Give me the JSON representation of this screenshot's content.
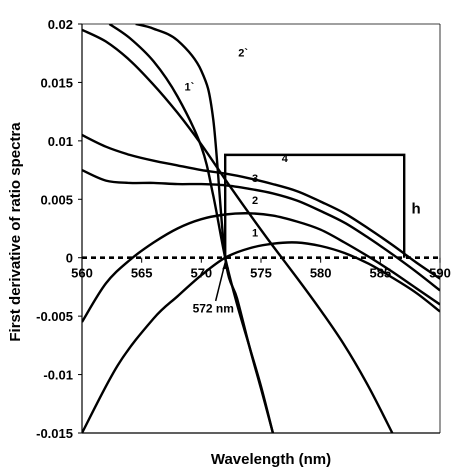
{
  "chart_data": {
    "type": "line",
    "xlabel": "Wavelength (nm)",
    "ylabel": "First derivative of ratio spectra",
    "xlim": [
      560,
      590
    ],
    "ylim": [
      -0.015,
      0.02
    ],
    "xticks": [
      560,
      565,
      570,
      575,
      580,
      585,
      590
    ],
    "xtick_labels": [
      "560",
      "565",
      "570",
      "575",
      "580",
      "585",
      "590"
    ],
    "yticks": [
      0.02,
      0.015,
      0.01,
      0.005,
      0,
      -0.005,
      -0.01,
      -0.015
    ],
    "ytick_labels": [
      "0.02",
      "0.015",
      "0.01",
      "0.005",
      "0",
      "-0.005",
      "-0.01",
      "-0.015"
    ],
    "grid": false,
    "zero_line": "dashed",
    "series": [
      {
        "name": "1",
        "x": [
          560,
          563,
          566,
          568,
          570,
          572,
          574,
          576,
          578,
          580,
          582,
          584,
          586,
          588,
          590
        ],
        "y": [
          -0.015,
          -0.0092,
          -0.0052,
          -0.0033,
          -0.0015,
          0.0,
          0.0008,
          0.0012,
          0.0013,
          0.001,
          0.0004,
          -0.0005,
          -0.0017,
          -0.003,
          -0.0046
        ]
      },
      {
        "name": "2",
        "x": [
          560,
          562,
          564,
          566,
          568,
          570,
          572,
          574,
          576,
          578,
          580,
          582,
          584,
          586,
          588,
          590
        ],
        "y": [
          -0.0055,
          -0.0022,
          -0.0002,
          0.0013,
          0.0025,
          0.0033,
          0.0037,
          0.0038,
          0.0036,
          0.0031,
          0.0024,
          0.0013,
          0.0001,
          -0.0012,
          -0.0026,
          -0.004
        ]
      },
      {
        "name": "3",
        "x": [
          560,
          562,
          564,
          566,
          568,
          570,
          572,
          574,
          576,
          578,
          580,
          582,
          584,
          586,
          588,
          590
        ],
        "y": [
          0.0075,
          0.0066,
          0.0064,
          0.0064,
          0.0063,
          0.0063,
          0.0062,
          0.0059,
          0.0055,
          0.0049,
          0.004,
          0.003,
          0.0017,
          0.0003,
          -0.0012,
          -0.0028
        ]
      },
      {
        "name": "4",
        "x": [
          560,
          562,
          564,
          566,
          568,
          570,
          572,
          574,
          576,
          578,
          580,
          582,
          584,
          586,
          588,
          590
        ],
        "y": [
          0.0105,
          0.0095,
          0.0088,
          0.0083,
          0.0079,
          0.0075,
          0.0072,
          0.0068,
          0.0063,
          0.0057,
          0.0048,
          0.0038,
          0.0025,
          0.0011,
          -0.0004,
          -0.0018
        ]
      },
      {
        "name": "1`",
        "x": [
          560,
          562,
          564,
          566,
          568,
          570,
          572,
          574,
          576,
          578,
          580,
          582,
          584,
          586
        ],
        "y": [
          0.0195,
          0.0185,
          0.0169,
          0.0148,
          0.0124,
          0.0097,
          0.0067,
          0.0038,
          0.001,
          -0.0017,
          -0.0045,
          -0.0075,
          -0.011,
          -0.015
        ]
      },
      {
        "name": "2`",
        "x": [
          562.3,
          564,
          566,
          568,
          570,
          571,
          572,
          573,
          574,
          575,
          576
        ],
        "y": [
          0.02,
          0.0188,
          0.0168,
          0.0138,
          0.0095,
          0.0053,
          0.0,
          -0.004,
          -0.0075,
          -0.011,
          -0.015
        ]
      },
      {
        "name": "",
        "x": [
          564.5,
          566,
          568,
          570,
          571,
          572,
          573,
          574,
          575,
          576
        ],
        "y": [
          0.02,
          0.0196,
          0.0186,
          0.016,
          0.0118,
          0.0,
          -0.0035,
          -0.0075,
          -0.0112,
          -0.015
        ]
      }
    ],
    "curve_labels": [
      {
        "text": "1",
        "x": 574.5,
        "y": 0.0018
      },
      {
        "text": "2",
        "x": 574.5,
        "y": 0.0046
      },
      {
        "text": "3",
        "x": 574.5,
        "y": 0.0065
      },
      {
        "text": "4",
        "x": 577,
        "y": 0.0082
      },
      {
        "text": "1`",
        "x": 569,
        "y": 0.0143
      },
      {
        "text": "2`",
        "x": 573.5,
        "y": 0.0172
      }
    ],
    "annotations": [
      {
        "text": "572 nm",
        "x": 571,
        "y": -0.0047
      },
      {
        "text": "h",
        "x": 588,
        "y": 0.0038
      }
    ],
    "measurement_box": {
      "x_start": 572,
      "x_end": 587,
      "y_top": 0.0088,
      "y_bottom": 0,
      "label": "h"
    }
  }
}
